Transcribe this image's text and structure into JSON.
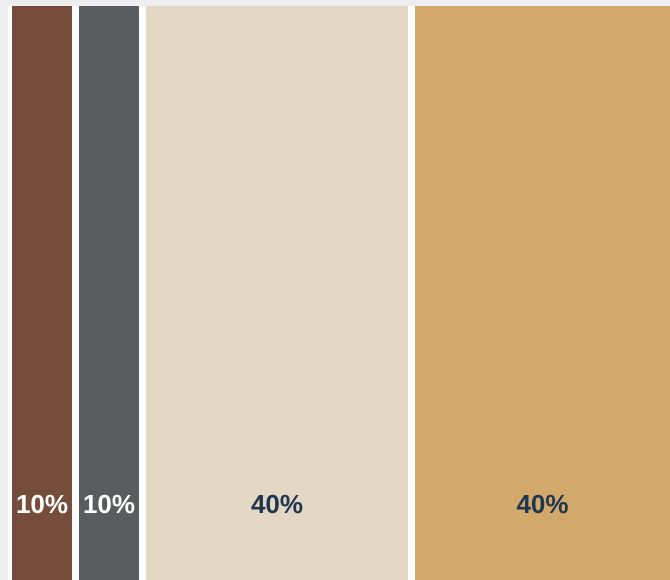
{
  "swatches": [
    {
      "color": "#764d3b",
      "label": "10%",
      "share": 10
    },
    {
      "color": "#595d5e",
      "label": "10%",
      "share": 10
    },
    {
      "color": "#e4d8c5",
      "label": "40%",
      "share": 40
    },
    {
      "color": "#d3a96b",
      "label": "40%",
      "share": 40
    }
  ]
}
